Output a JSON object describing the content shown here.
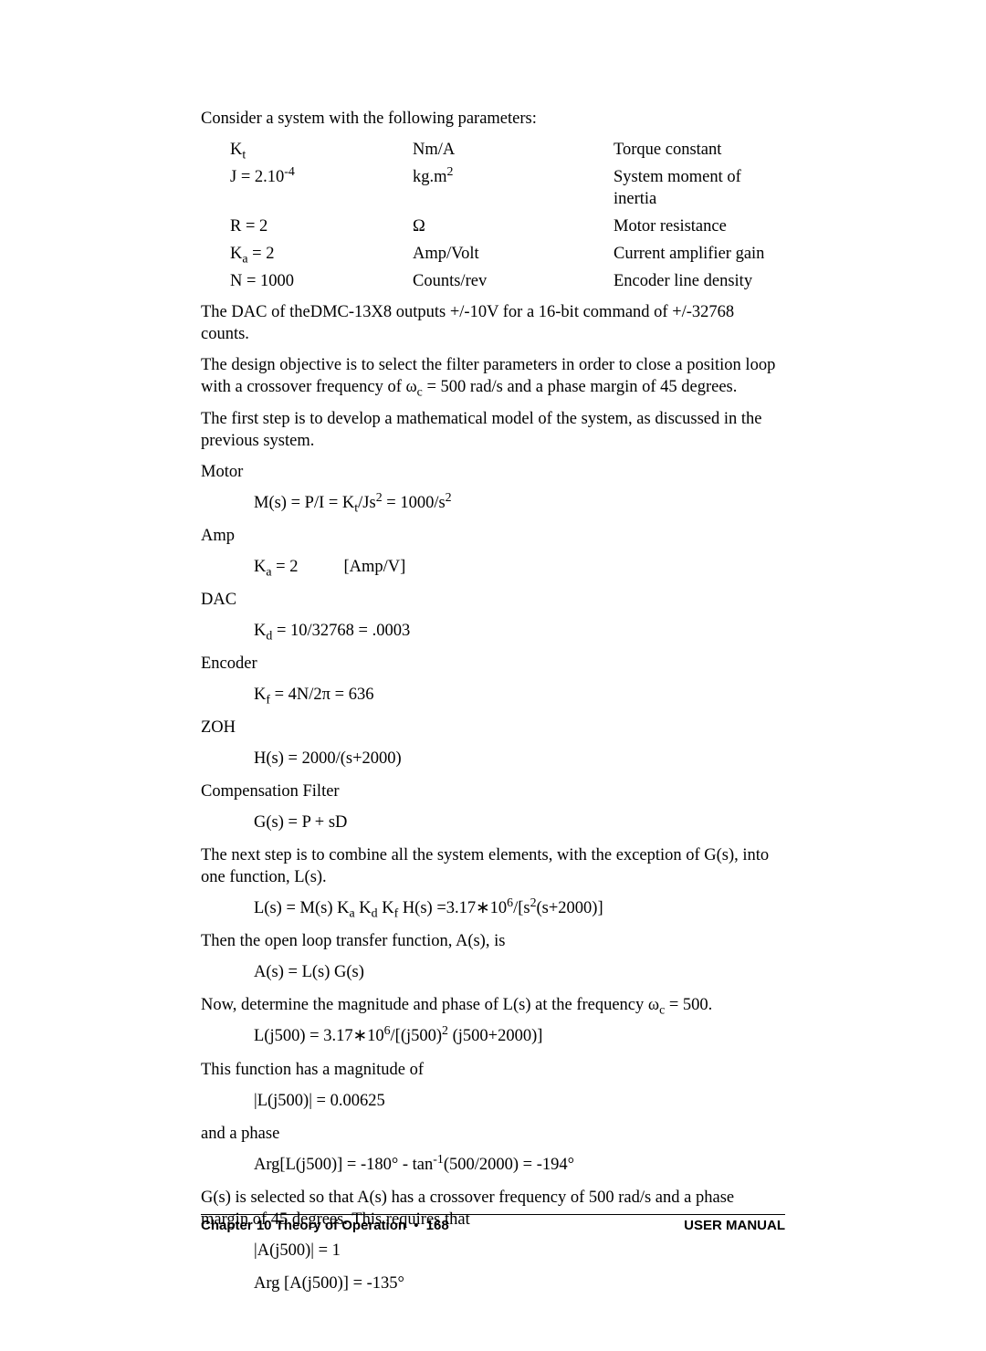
{
  "intro": "Consider a system with the following parameters:",
  "params": [
    {
      "sym": "K<span class='sub'>t</span>",
      "unit": "Nm/A",
      "desc": "Torque constant"
    },
    {
      "sym": "J = 2.10<span class='sup'>-4</span>",
      "unit": "kg.m<span class='sup'>2</span>",
      "desc": "System moment of inertia"
    },
    {
      "sym": "R = 2",
      "unit": "Ω",
      "desc": "Motor resistance"
    },
    {
      "sym": "K<span class='sub'>a</span> = 2",
      "unit": "Amp/Volt",
      "desc": "Current amplifier gain"
    },
    {
      "sym": "N = 1000",
      "unit": "Counts/rev",
      "desc": "Encoder line density"
    }
  ],
  "p1": "The DAC of theDMC-13X8 outputs +/-10V for a 16-bit command of +/-32768 counts.",
  "p2a": "The design objective is to select the filter parameters in order to close a position loop with a crossover frequency of ω",
  "p2b": " = 500 rad/s and a phase margin of 45 degrees.",
  "p3": "The first step is to develop a mathematical model of the system, as discussed in the previous system.",
  "motor": "Motor",
  "motor_eq": "M(s) = P/I = K<span class='sub'>t</span>/Js<span class='sup'>2</span> = 1000/s<span class='sup'>2</span>",
  "amp": "Amp",
  "amp_eq": "K<span class='sub'>a</span> = 2<span class='unit-space'></span>[Amp/V]",
  "dac": "DAC",
  "dac_eq": "K<span class='sub'>d</span> = 10/32768 = .0003",
  "encoder": "Encoder",
  "encoder_eq": "K<span class='sub'>f</span> = 4N/2π = 636",
  "zoh": "ZOH",
  "zoh_eq": "H(s) = 2000/(s+2000)",
  "comp": "Compensation Filter",
  "comp_eq": "G(s) = P + sD",
  "p4": "The next step is to combine all the system elements, with the exception of G(s), into one function, L(s).",
  "ls_eq": "L(s) = M(s) K<span class='sub'>a</span> K<span class='sub'>d</span> K<span class='sub'>f</span> H(s) =3.17∗10<span class='sup'>6</span>/[s<span class='sup'>2</span>(s+2000)]",
  "p5": "Then the open loop transfer function, A(s), is",
  "as_eq": "A(s) = L(s) G(s)",
  "p6a": "Now, determine the magnitude and phase of L(s) at the frequency ω",
  "p6b": " = 500.",
  "lj_eq": "L(j500) = 3.17∗10<span class='sup'>6</span>/[(j500)<span class='sup'>2</span> (j500+2000)]",
  "p7": "This function has a magnitude of",
  "mag_eq": "|L(j500)| = 0.00625",
  "p8": "and a phase",
  "arg_eq": "Arg[L(j500)] = -180° - tan<span class='sup'>-1</span>(500/2000) = -194°",
  "p9": "G(s) is selected so that A(s) has a crossover frequency of 500 rad/s and a phase margin of 45 degrees.  This requires that",
  "aj_eq1": "|A(j500)| = 1",
  "aj_eq2": "Arg [A(j500)] = -135°",
  "footer_left_a": "Chapter 10 Theory of Operation",
  "footer_left_b": "168",
  "footer_right": "USER MANUAL"
}
